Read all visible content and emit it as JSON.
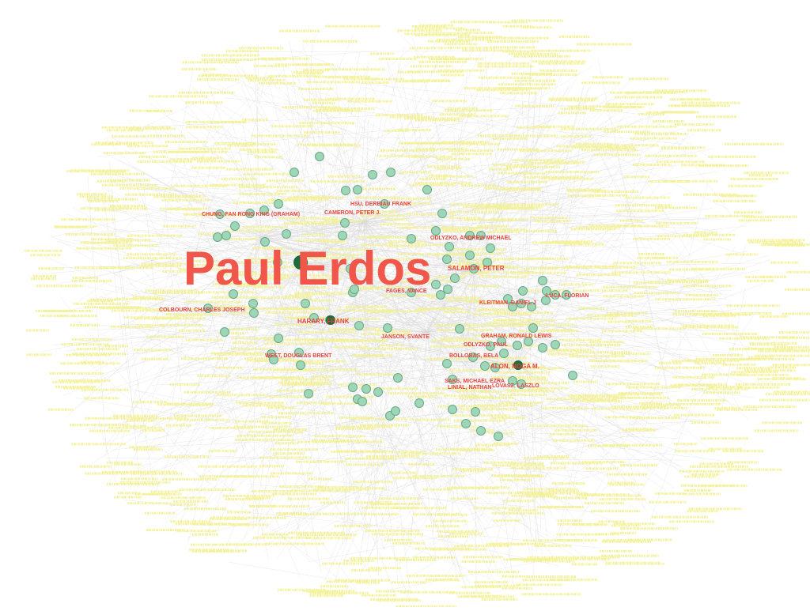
{
  "graph": {
    "hub_label": "Paul Erdos",
    "colors": {
      "hub_label": "#f0564a",
      "author_label": "#e8423a",
      "peripheral_label": "#f2f08c",
      "edge": "#d6d6d6",
      "node_fill": "#9ed6b8",
      "node_stroke": "#6aa888",
      "hub_node": "#1e6b3c"
    },
    "authors": [
      "CHUNG, FAN RONG KING (GRAHAM)",
      "CAMERON, PETER J.",
      "HSU, DERBIAU FRANK",
      "ODLYZKO, ANDREW MICHAEL",
      "SALAMON, PETER",
      "FAGES, VANCE",
      "COLBOURN, CHARLES JOSEPH",
      "HARARY, FRANK",
      "JANSON, SVANTE",
      "KLEITMAN, DANIEL J",
      "LUCA, FLORIAN",
      "GRAHAM, RONALD LEWIS",
      "WEST, DOUGLAS BRENT",
      "ODLYZKO, PAUL",
      "BOLLOBAS, BELA",
      "ALON, NOGA M.",
      "SAKS, MICHAEL EZRA",
      "LINIAL, NATHAN",
      "LOVASZ, LASZLO"
    ]
  }
}
